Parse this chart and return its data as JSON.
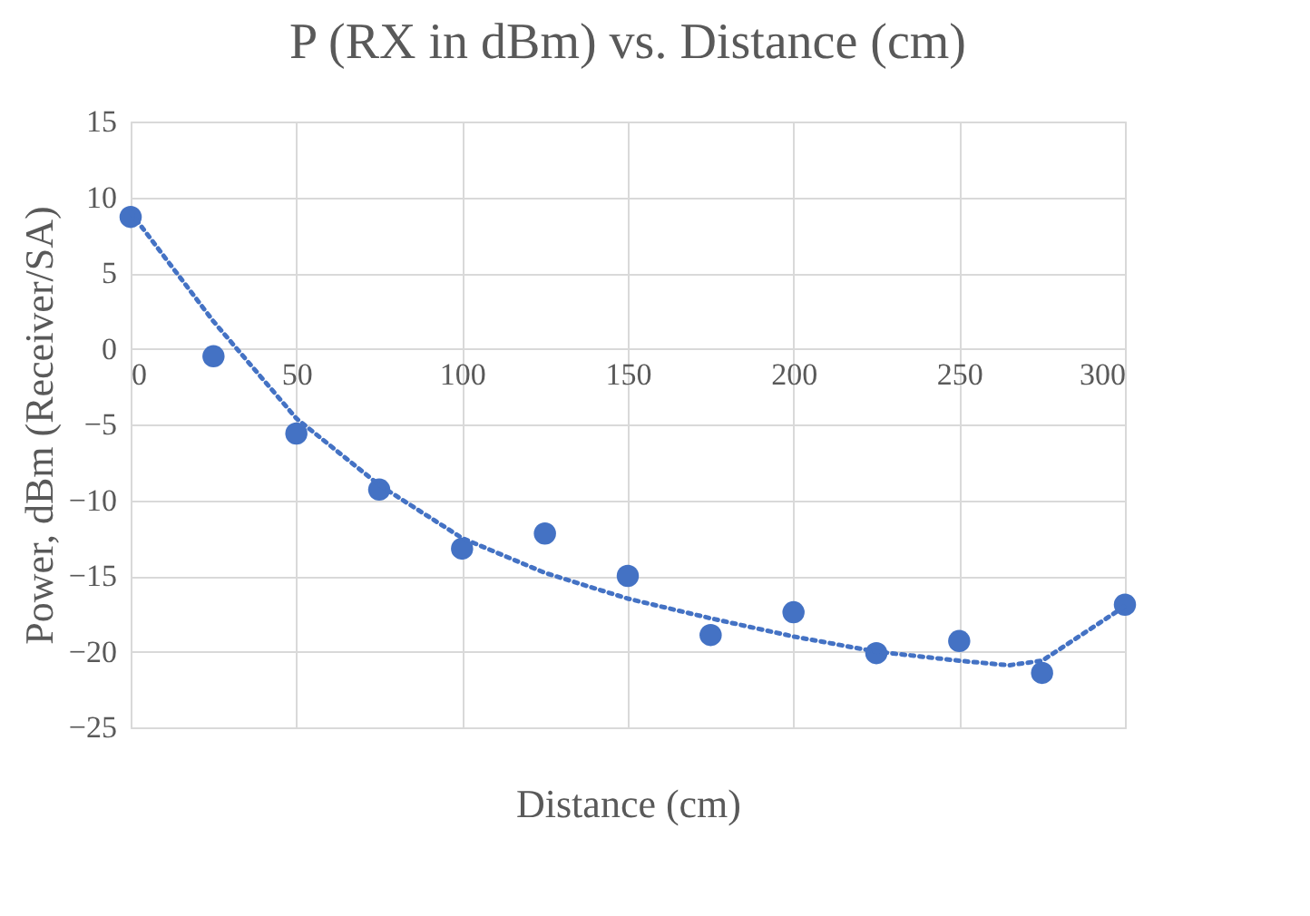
{
  "chart_data": {
    "type": "scatter",
    "title": "P (RX in dBm)  vs. Distance (cm)",
    "xlabel": "Distance (cm)",
    "ylabel": "Power, dBm  (Receiver/SA)",
    "xlim": [
      0,
      300
    ],
    "xticks": [
      0,
      50,
      100,
      150,
      200,
      250,
      300
    ],
    "ylim": [
      -25,
      15
    ],
    "yticks": [
      -25,
      -20,
      -15,
      -10,
      -5,
      0,
      5,
      10,
      15
    ],
    "grid": true,
    "marker": "circle",
    "series": [
      {
        "color": "#4472c4",
        "x": [
          0,
          25,
          50,
          75,
          100,
          125,
          150,
          175,
          200,
          225,
          250,
          275,
          300
        ],
        "values": [
          8.7,
          -0.5,
          -5.6,
          -9.3,
          -13.2,
          -12.2,
          -15.0,
          -18.9,
          -17.4,
          -20.1,
          -19.3,
          -21.4,
          -16.9
        ]
      },
      {
        "type": "line",
        "color": "#4472c4",
        "line_style": "dotted",
        "marker": "none",
        "x": [
          0,
          25,
          50,
          75,
          100,
          125,
          150,
          175,
          200,
          225,
          250,
          265,
          275,
          300
        ],
        "values": [
          9,
          1.8,
          -4.6,
          -9,
          -12.5,
          -14.8,
          -16.5,
          -17.8,
          -19,
          -20,
          -20.6,
          -20.9,
          -20.6,
          -17
        ]
      }
    ]
  }
}
